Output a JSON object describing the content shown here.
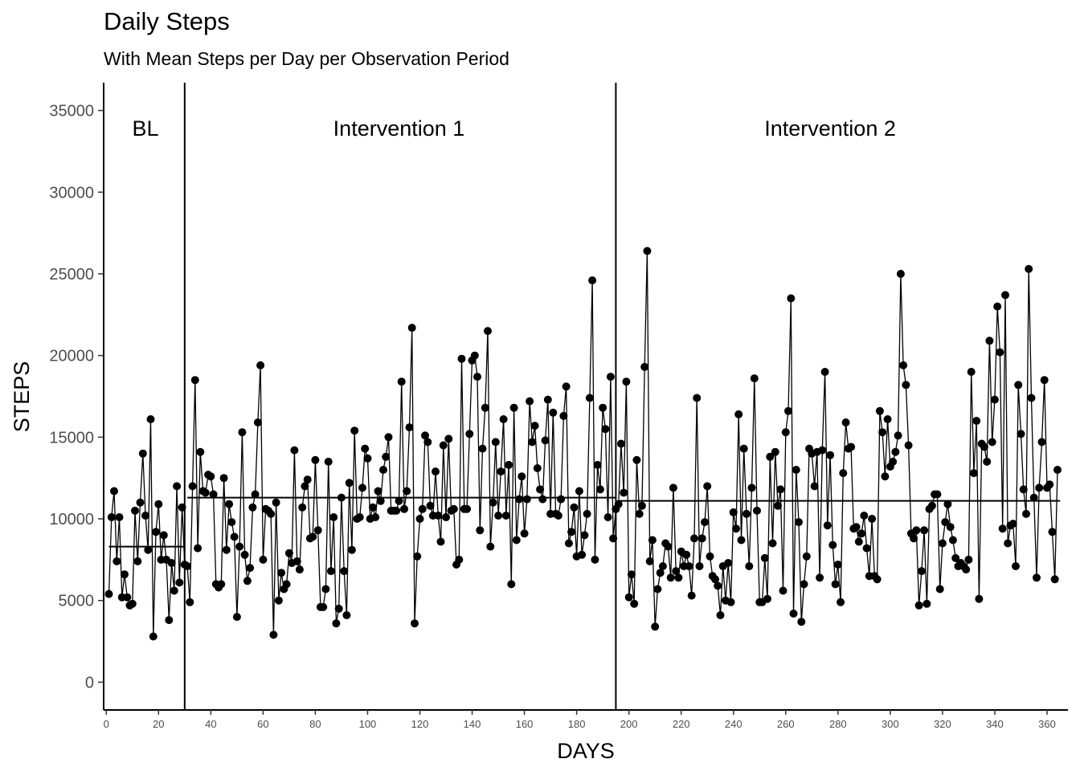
{
  "chart_data": {
    "type": "line",
    "title": "Daily Steps",
    "subtitle": "With Mean Steps per Day per Observation Period",
    "xlabel": "DAYS",
    "ylabel": "STEPS",
    "xlim": [
      -1,
      368
    ],
    "ylim": [
      -1700,
      36700
    ],
    "x_ticks": [
      0,
      20,
      40,
      60,
      80,
      100,
      120,
      140,
      160,
      180,
      200,
      220,
      240,
      260,
      280,
      300,
      320,
      340,
      360
    ],
    "y_ticks": [
      0,
      5000,
      10000,
      15000,
      20000,
      25000,
      30000,
      35000
    ],
    "grid": false,
    "phase_lines": [
      30,
      195
    ],
    "phases": [
      {
        "label": "BL",
        "x": 15,
        "mean": 8300,
        "start": 1,
        "end": 30
      },
      {
        "label": "Intervention 1",
        "x": 112,
        "mean": 11300,
        "start": 31,
        "end": 195
      },
      {
        "label": "Intervention 2",
        "x": 277,
        "mean": 11100,
        "start": 196,
        "end": 365
      }
    ],
    "series": [
      {
        "values": [
          5400,
          10100,
          11700,
          7400,
          10100,
          5200,
          6600,
          5200,
          4700,
          4800,
          10500,
          7400,
          11000,
          14000,
          10200,
          8100,
          16100,
          2800,
          9200,
          10900,
          7500,
          9000,
          7500,
          3800,
          7300,
          5600,
          12000,
          6100,
          10700,
          7200,
          7100,
          4900,
          12000,
          18500,
          8200,
          14100,
          11700,
          11600,
          12700,
          12600,
          11500,
          6000,
          5800,
          6000,
          12500,
          8100,
          10900,
          9800,
          8900,
          4000,
          8300,
          15300,
          7800,
          6200,
          7000,
          10700,
          11500,
          15900,
          19400,
          7500,
          10600,
          10500,
          10300,
          2900,
          11000,
          5000,
          6700,
          5700,
          6000,
          7900,
          7300,
          14200,
          7400,
          6900,
          10700,
          12000,
          12400,
          8800,
          8900,
          13600,
          9300,
          4600,
          4600,
          5700,
          13500,
          6800,
          10100,
          3600,
          4500,
          11300,
          6800,
          4100,
          12200,
          8100,
          15400,
          10000,
          10100,
          11900,
          14300,
          13700,
          10000,
          10700,
          10100,
          11700,
          11100,
          13000,
          13800,
          15000,
          10500,
          10500,
          10500,
          11100,
          18400,
          10600,
          11700,
          15600,
          21700,
          3600,
          7700,
          10000,
          10600,
          15100,
          14700,
          10800,
          10200,
          12900,
          10200,
          8600,
          14500,
          10100,
          14900,
          10500,
          10600,
          7200,
          7500,
          19800,
          10600,
          10600,
          15200,
          19700,
          20000,
          18700,
          9300,
          14300,
          16800,
          21500,
          8300,
          11000,
          14700,
          10200,
          12900,
          16100,
          10200,
          13300,
          6000,
          16800,
          8700,
          11200,
          12600,
          9100,
          11200,
          17200,
          14700,
          15700,
          13100,
          11800,
          11200,
          14800,
          17300,
          10300,
          16500,
          10300,
          10200,
          11200,
          16300,
          18100,
          8500,
          9200,
          10700,
          7700,
          11700,
          7800,
          9000,
          10300,
          17400,
          24600,
          7500,
          13300,
          11800,
          16800,
          15500,
          10100,
          18700,
          8800,
          10600,
          10900,
          14600,
          11600,
          18400,
          5200,
          6600,
          4800,
          13600,
          10300,
          10800,
          19300,
          26400,
          7400,
          8700,
          3400,
          5700,
          6700,
          7100,
          8500,
          8300,
          6400,
          11900,
          6800,
          6400,
          8000,
          7100,
          7800,
          7100,
          5300,
          8800,
          17400,
          7100,
          8800,
          9800,
          12000,
          7700,
          6500,
          6300,
          5900,
          4100,
          7100,
          5000,
          7300,
          4900,
          10400,
          9400,
          16400,
          8700,
          14300,
          10300,
          7100,
          11900,
          18600,
          10500,
          4900,
          4900,
          7600,
          5100,
          13800,
          8500,
          14100,
          10800,
          11800,
          5600,
          15300,
          16600,
          23500,
          4200,
          13000,
          9800,
          3700,
          6000,
          7700,
          14300,
          14000,
          12000,
          14100,
          6400,
          14200,
          19000,
          9600,
          13900,
          8400,
          6000,
          7200,
          4900,
          12800,
          15900,
          14300,
          14400,
          9400,
          9500,
          8600,
          9100,
          10200,
          8200,
          6500,
          10000,
          6500,
          6300,
          16600,
          15300,
          12600,
          16100,
          13200,
          13500,
          14100,
          15100,
          25000,
          19400,
          18200,
          14500,
          9100,
          8800,
          9300,
          4700,
          6800,
          9300,
          4800,
          10600,
          10800,
          11500,
          11500,
          5700,
          8500,
          9800,
          10900,
          9500,
          8700,
          7600,
          7100,
          7300,
          7100,
          6900,
          7500,
          19000,
          12800,
          16000,
          5100,
          14600,
          14400,
          13500,
          20900,
          14700,
          17300,
          23000,
          20200,
          9400,
          23700,
          8500,
          9600,
          9700,
          7100,
          18200,
          15200,
          11800,
          10300,
          25300,
          17400,
          11300,
          6400,
          11900,
          14700,
          18500,
          11900,
          12100,
          9200,
          6300,
          13000
        ]
      }
    ]
  }
}
